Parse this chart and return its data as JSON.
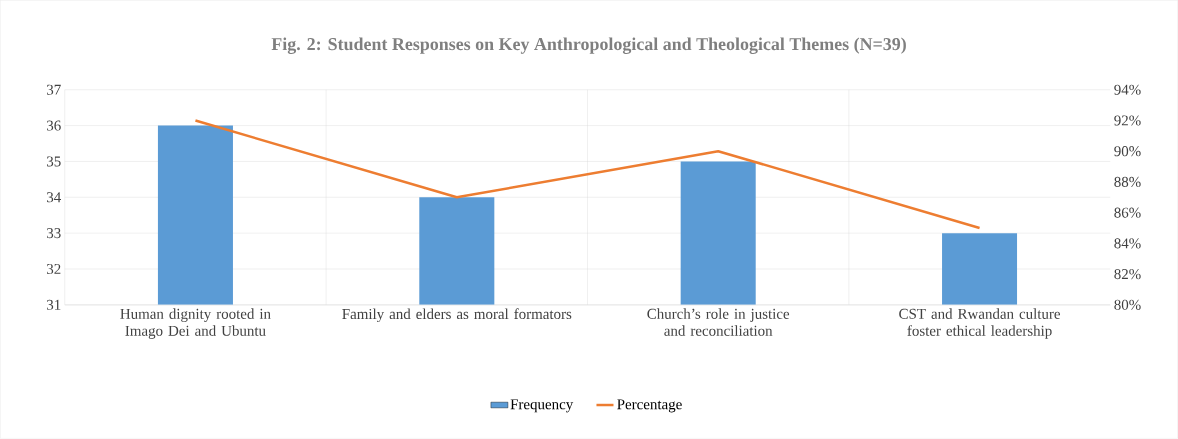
{
  "chart_data": {
    "type": "bar",
    "title": "Fig. 2: Student Responses on Key Anthropological and Theological Themes (N=39)",
    "categories": [
      "Human dignity rooted in Imago Dei and Ubuntu",
      "Family and elders as moral formators",
      "Church’s role in justice and reconciliation",
      "CST and Rwandan culture foster ethical leadership"
    ],
    "series": [
      {
        "name": "Frequency",
        "color": "#5b9bd5",
        "values": [
          36,
          34,
          35,
          33
        ]
      },
      {
        "name": "Percentage",
        "type": "line",
        "axis": "y2",
        "color": "#ed7d31",
        "values": [
          92,
          87,
          90,
          85
        ]
      }
    ],
    "ylim": [
      31,
      37
    ],
    "yticks": [
      31,
      32,
      33,
      34,
      35,
      36,
      37
    ],
    "y2lim": [
      80,
      94
    ],
    "y2ticks": [
      {
        "value": 80,
        "label": "80%"
      },
      {
        "value": 82,
        "label": "82%"
      },
      {
        "value": 84,
        "label": "84%"
      },
      {
        "value": 86,
        "label": "86%"
      },
      {
        "value": 88,
        "label": "88%"
      },
      {
        "value": 90,
        "label": "90%"
      },
      {
        "value": 92,
        "label": "92%"
      },
      {
        "value": 94,
        "label": "94%"
      }
    ],
    "grid": true,
    "legend": "bottom",
    "marker": "none",
    "line_style": "solid"
  }
}
